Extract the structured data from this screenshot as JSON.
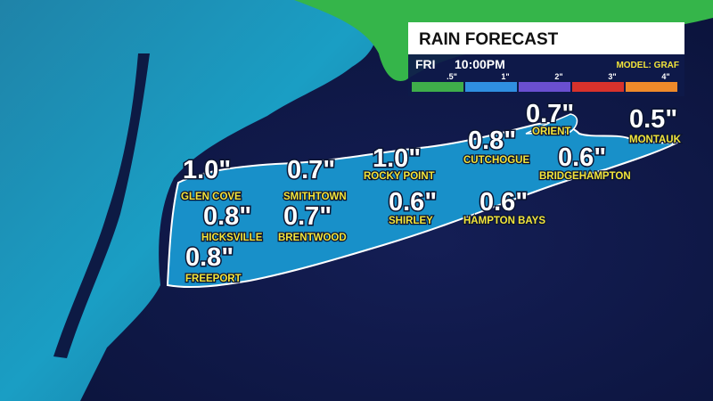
{
  "header": {
    "title": "RAIN FORECAST",
    "day": "FRI",
    "time": "10:00PM",
    "model": "MODEL: GRAF"
  },
  "legend": {
    "items": [
      {
        "label": ".5\"",
        "color": "#3fae4a"
      },
      {
        "label": "1\"",
        "color": "#2f8fe0"
      },
      {
        "label": "2\"",
        "color": "#6a4fd0"
      },
      {
        "label": "3\"",
        "color": "#d8322c"
      },
      {
        "label": "4\"",
        "color": "#ef8a2a"
      }
    ]
  },
  "locations": [
    {
      "amount": "1.0\"",
      "name": "GLEN COVE"
    },
    {
      "amount": "0.7\"",
      "name": "SMITHTOWN"
    },
    {
      "amount": "1.0\"",
      "name": "ROCKY POINT"
    },
    {
      "amount": "0.8\"",
      "name": "CUTCHOGUE"
    },
    {
      "amount": "0.7\"",
      "name": "ORIENT"
    },
    {
      "amount": "0.5\"",
      "name": "MONTAUK"
    },
    {
      "amount": "0.8\"",
      "name": "HICKSVILLE"
    },
    {
      "amount": "0.7\"",
      "name": "BRENTWOOD"
    },
    {
      "amount": "0.6\"",
      "name": "SHIRLEY"
    },
    {
      "amount": "0.6\"",
      "name": "HAMPTON BAYS"
    },
    {
      "amount": "0.6\"",
      "name": "BRIDGEHAMPTON"
    },
    {
      "amount": "0.8\"",
      "name": "FREEPORT"
    }
  ]
}
